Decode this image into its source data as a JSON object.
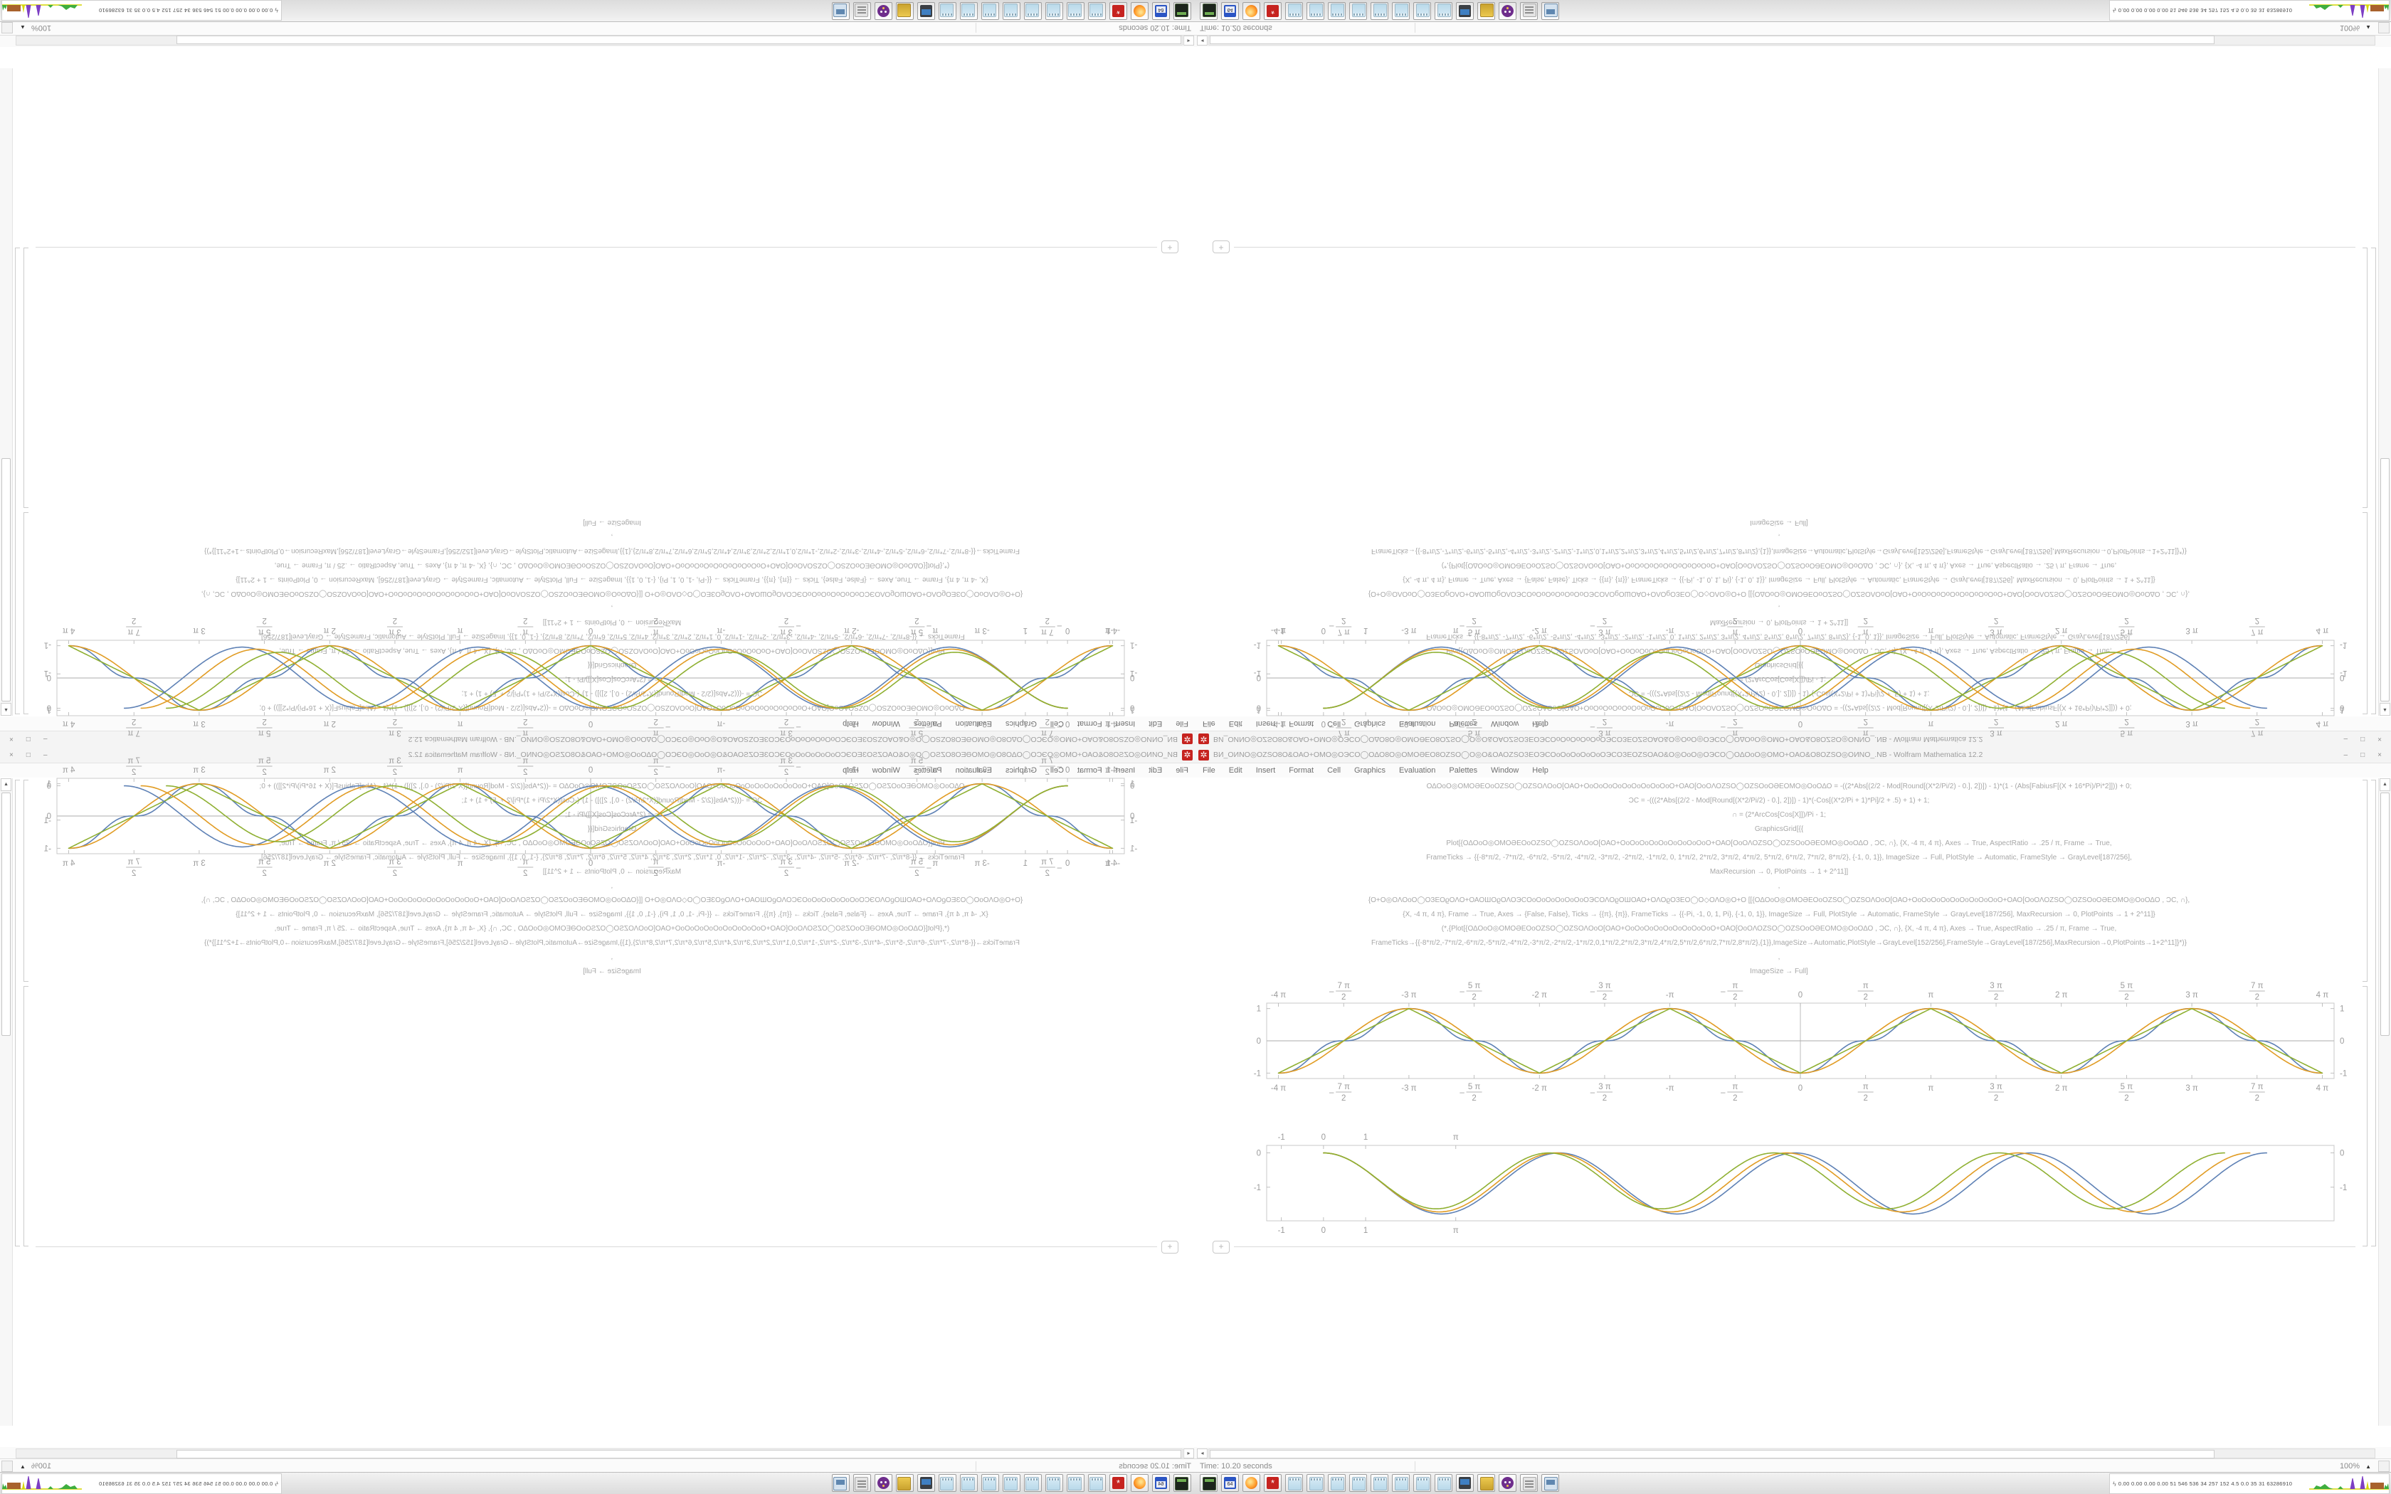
{
  "window": {
    "title": "ВИ_ΟИΝΟ◎ΟΖЅΟ8Ο&ΟΑΟ+ΟΜΟ◎ΟЭСΟ◯ΟΔΟ8Ο◎ΟΜΟƏΕΟ8ΟΖЅΟ◯Ο◎Ο&ΟΑΟΖЅΟЗΕΟЭСΟοΟοΟοΟοΟοΟЭСΟЗΕΟΖЅΟΑΟ&Ο◎ΟοΟ◎ΟЭСΟ◯ΟΔΟοΟ◎ΟΜΟ+ΟΑΟ&Ο8ΟΖЅΟ◎ΟИΝΟ_.NB - Wolfram Mathematica 12.2",
    "menu": [
      "File",
      "Edit",
      "Insert",
      "Format",
      "Cell",
      "Graphics",
      "Evaluation",
      "Palettes",
      "Window",
      "Help"
    ],
    "buttons": {
      "minimize": "–",
      "maximize": "□",
      "close": "×"
    }
  },
  "code_lines": [
    "ΟΔΟοΟ◎ΟΜΟƏΕΟοΟΖЅΟ◯ΟΖЅΟΛΟοΟ[ΟΑΟ+ΟοΟοΟοΟοΟοΟοΟοΟοΟοΟ+ΟΑΟ[ΟοΟΛΟΖЅΟ◯ΟΖЅΟοΟƏΕΟΜΟ◎ΟοΟΔΟ     = -((2*Abs[(2/2 - Mod[Round[(X*2/Pi/2) - 0.], 2])]) - 1)*(1 - (Abs[FabiusF[(X + 16*Pi)/Pi*2]])) + 0;",
    "ƆC = -(((2*Abs[(2/2 - Mod[Round[(X*2/Pi/2) - 0.], 2])]) - 1)*(-Cos[(X*2/Pi + 1)*Pi]/2 + .5) + 1) + 1;",
    "∩ = (2*ArcCos[Cos[X]])/Pi - 1;",
    "GraphicsGrid[{{",
    "Plot[{ΟΔΟοΟ◎ΟΜΟƏΕΟοΟΖЅΟ◯ΟΖЅΟΛΟοΟ[ΟΑΟ+ΟοΟοΟοΟοΟοΟοΟοΟοΟοΟ+ΟΑΟ[ΟοΟΛΟΖЅΟ◯ΟΖЅΟοΟƏΕΟΜΟ◎ΟοΟΔΟ     , ƆC, ∩}, {X, -4 π, 4 π}, Axes → True, AspectRatio → .25 / π, Frame → True,",
    "FrameTicks → {{-8*π/2, -7*π/2, -6*π/2, -5*π/2, -4*π/2, -3*π/2, -2*π/2, -1*π/2, 0, 1*π/2, 2*π/2, 3*π/2, 4*π/2, 5*π/2, 6*π/2, 7*π/2, 8*π/2}, {-1, 0, 1}}, ImageSize → Full, PlotStyle → Automatic, FrameStyle → GrayLevel[187/256],",
    "MaxRecursion → 0, PlotPoints → 1 + 2^11]]",
    ",",
    "{Ο+Ο◎ΟΛΟοΟ◯ΟЗΕΟϱΟΛΟ+ΟΑΟШΟϱΟΛΟЭСΟοΟοΟοΟοΟοΟοΟЭСΟΛΟϱΟШΟΑΟ+ΟΛΟϱΟЗΕΟ◯Ο◇ΟΛΟ◎Ο+Ο   [[{ΟΔΟοΟ◎ΟΜΟƏΕΟοΟΖЅΟ◯ΟΖЅΟΛΟοΟ[ΟΑΟ+ΟοΟοΟοΟοΟοΟοΟοΟοΟοΟ+ΟΑΟ[ΟοΟΛΟΖЅΟ◯ΟΖЅΟοΟƏΕΟΜΟ◎ΟοΟΔΟ     , ƆC, ∩},",
    "{X, -4 π, 4 π}, Frame → True, Axes → {False, False}, Ticks → {{π}, {π}}, FrameTicks → {{-Pi, -1, 0, 1, Pi}, {-1, 0, 1}}, ImageSize → Full, PlotStyle → Automatic, FrameStyle → GrayLevel[187/256], MaxRecursion → 0, PlotPoints → 1 + 2^11]}",
    "(*,{Plot[{ΟΔΟοΟ◎ΟΜΟƏΕΟοΟΖЅΟ◯ΟΖЅΟΛΟοΟ[ΟΑΟ+ΟοΟοΟοΟοΟοΟοΟοΟοΟοΟ+ΟΑΟ[ΟοΟΛΟΖЅΟ◯ΟΖЅΟοΟƏΕΟΜΟ◎ΟοΟΔΟ     , ƆC, ∩}, {X, -4 π, 4 π}, Axes → True, AspectRatio → .25 / π, Frame → True,",
    "FrameTicks→{{-8*π/2,-7*π/2,-6*π/2,-5*π/2,-4*π/2,-3*π/2,-2*π/2,-1*π/2,0,1*π/2,2*π/2,3*π/2,4*π/2,5*π/2,6*π/2,7*π/2,8*π/2},{1}},ImageSize→Automatic,PlotStyle→GrayLevel[152/256],FrameStyle→GrayLevel[187/256],MaxRecursion→0,PlotPoints→1+2^11]}*)}",
    ",",
    "ImageSize → Full]"
  ],
  "insert_plus": "+",
  "scroll": {
    "up": "▲",
    "left": "◂"
  },
  "status": {
    "time": "Time: 10.20 seconds",
    "zoom": "100%",
    "zoom_arrow": "▲"
  },
  "taskbar": {
    "tray_bolt": "ϟ",
    "tray_text": "0.00 0.00 0.00 0.00   51   546   536   34   257   152   4.5   0.0   35   31   63286910",
    "icons": [
      {
        "name": "terminal",
        "kind": "terminal"
      },
      {
        "name": "floppy-64",
        "kind": "floppy"
      },
      {
        "name": "firefox",
        "kind": "firefox"
      },
      {
        "name": "mathematica",
        "kind": "mathematica",
        "label": "*"
      },
      {
        "name": "notepad-1",
        "kind": "notepad"
      },
      {
        "name": "notepad-2",
        "kind": "notepad"
      },
      {
        "name": "notepad-3",
        "kind": "notepad"
      },
      {
        "name": "notepad-4",
        "kind": "notepad"
      },
      {
        "name": "notepad-5",
        "kind": "notepad"
      },
      {
        "name": "notepad-6",
        "kind": "notepad"
      },
      {
        "name": "notepad-7",
        "kind": "notepad"
      },
      {
        "name": "notepad-8",
        "kind": "notepad"
      },
      {
        "name": "screenshot-monitor",
        "kind": "monitor"
      },
      {
        "name": "folder",
        "kind": "folder"
      },
      {
        "name": "purple-app",
        "kind": "purple"
      },
      {
        "name": "document-viewer",
        "kind": "printer"
      },
      {
        "name": "desktop-window",
        "kind": "desktop"
      }
    ],
    "cpu_colors": {
      "baseline": "#d6d600",
      "patch": "#3fae3f",
      "spike": "#7d3fc4",
      "block": "#a8622d"
    }
  },
  "chart_data": [
    {
      "type": "line",
      "name": "waveform-comparison-plot",
      "xlim": [
        -12.85,
        12.85
      ],
      "ylim": [
        -1.17,
        1.17
      ],
      "frame": true,
      "axes": true,
      "x_ticks": [
        {
          "v": -12.566,
          "label": "-4 π"
        },
        {
          "v": -10.996,
          "frac": [
            "7 π",
            "2"
          ],
          "neg": true
        },
        {
          "v": -9.4248,
          "label": "-3 π"
        },
        {
          "v": -7.854,
          "frac": [
            "5 π",
            "2"
          ],
          "neg": true
        },
        {
          "v": -6.2832,
          "label": "-2 π"
        },
        {
          "v": -4.7124,
          "frac": [
            "3 π",
            "2"
          ],
          "neg": true
        },
        {
          "v": -3.1416,
          "label": "-π"
        },
        {
          "v": -1.5708,
          "frac": [
            "π",
            "2"
          ],
          "neg": true
        },
        {
          "v": 0,
          "label": "0"
        },
        {
          "v": 1.5708,
          "frac": [
            "π",
            "2"
          ]
        },
        {
          "v": 3.1416,
          "label": "π"
        },
        {
          "v": 4.7124,
          "frac": [
            "3 π",
            "2"
          ]
        },
        {
          "v": 6.2832,
          "label": "2 π"
        },
        {
          "v": 7.854,
          "frac": [
            "5 π",
            "2"
          ]
        },
        {
          "v": 9.4248,
          "label": "3 π"
        },
        {
          "v": 10.996,
          "frac": [
            "7 π",
            "2"
          ]
        },
        {
          "v": 12.566,
          "label": "4 π"
        }
      ],
      "y_ticks": [
        {
          "v": 1,
          "label": "1"
        },
        {
          "v": 0,
          "label": "0"
        },
        {
          "v": -1,
          "label": "-1"
        }
      ],
      "series": [
        {
          "name": "FabiusF staircase wave",
          "shape": "staircase",
          "color": "#5e81b5",
          "x_start": -12.566,
          "x_end": 12.566
        },
        {
          "name": "ƆC cosine wave",
          "shape": "negcos",
          "color": "#e19c24",
          "x_start": -12.566,
          "x_end": 12.566
        },
        {
          "name": "∩ triangle wave",
          "shape": "triangle",
          "color": "#8fb032",
          "x_start": -12.566,
          "x_end": 12.566
        }
      ]
    },
    {
      "type": "line",
      "name": "phase-offset-dip-plot",
      "xlim": [
        -1.35,
        24.0
      ],
      "ylim": [
        -1.98,
        0.22
      ],
      "frame": true,
      "axes": false,
      "x_ticks": [
        {
          "v": -1,
          "label": "-1"
        },
        {
          "v": 0,
          "label": "0"
        },
        {
          "v": 1,
          "label": "1"
        },
        {
          "v": 3.1416,
          "label": "π"
        }
      ],
      "y_ticks": [
        {
          "v": 0,
          "label": "0"
        },
        {
          "v": -1,
          "label": "-1"
        }
      ],
      "series": [
        {
          "name": "blue dip wave",
          "shape": "dip",
          "color": "#5e81b5",
          "T": 5.6,
          "A": 1.78,
          "x_start": 0,
          "x_end": 22.4
        },
        {
          "name": "orange dip wave",
          "shape": "dip",
          "color": "#e19c24",
          "T": 5.5,
          "A": 1.72,
          "x_start": 0,
          "x_end": 22.0
        },
        {
          "name": "green dip wave",
          "shape": "dip",
          "color": "#8fb032",
          "T": 5.35,
          "A": 1.63,
          "x_start": 0,
          "x_end": 21.4
        }
      ]
    }
  ]
}
